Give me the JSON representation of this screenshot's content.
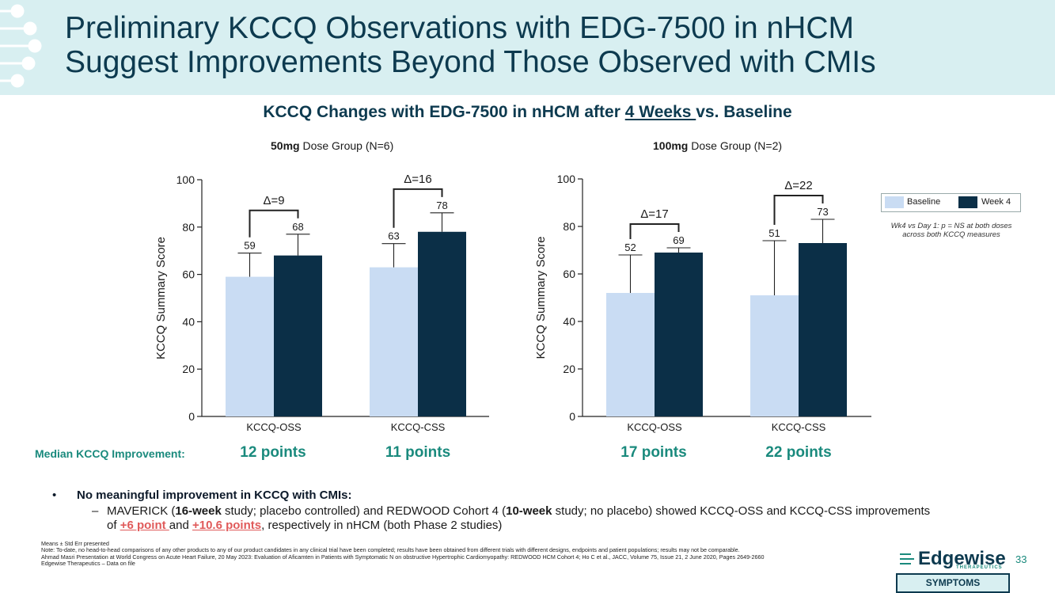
{
  "header": {
    "title_line1": "Preliminary KCCQ Observations with EDG-7500 in nHCM",
    "title_line2": "Suggest Improvements Beyond Those Observed with CMIs"
  },
  "subtitle": {
    "pre": "KCCQ Changes with EDG-7500 in nHCM after ",
    "underlined": "4 Weeks ",
    "post": "vs. Baseline"
  },
  "colors": {
    "baseline": "#c9dcf3",
    "week4": "#0b2f47",
    "accent": "#1a8a7d",
    "header_bg": "#d8eff1"
  },
  "chart_data": [
    {
      "type": "bar",
      "dose_bold": "50mg",
      "dose_rest": " Dose Group (N=6)",
      "ylabel": "KCCQ Summary Score",
      "ylim": [
        0,
        100
      ],
      "yticks": [
        "0",
        "20",
        "40",
        "60",
        "80",
        "100"
      ],
      "categories": [
        "KCCQ-OSS",
        "KCCQ-CSS"
      ],
      "series": [
        {
          "name": "Baseline",
          "values": [
            59,
            63
          ],
          "err": [
            10,
            10
          ],
          "labels": [
            "59",
            "63"
          ]
        },
        {
          "name": "Week 4",
          "values": [
            68,
            78
          ],
          "err": [
            9,
            8
          ],
          "labels": [
            "68",
            "78"
          ]
        }
      ],
      "deltas": [
        "Δ=9",
        "Δ=16"
      ]
    },
    {
      "type": "bar",
      "dose_bold": "100mg",
      "dose_rest": " Dose Group (N=2)",
      "ylabel": "KCCQ Summary Score",
      "ylim": [
        0,
        100
      ],
      "yticks": [
        "0",
        "20",
        "40",
        "60",
        "80",
        "100"
      ],
      "categories": [
        "KCCQ-OSS",
        "KCCQ-CSS"
      ],
      "series": [
        {
          "name": "Baseline",
          "values": [
            52,
            51
          ],
          "err": [
            16,
            23
          ],
          "labels": [
            "52",
            "51"
          ]
        },
        {
          "name": "Week 4",
          "values": [
            69,
            73
          ],
          "err": [
            2,
            10
          ],
          "labels": [
            "69",
            "73"
          ]
        }
      ],
      "deltas": [
        "Δ=17",
        "Δ=22"
      ]
    }
  ],
  "legend": {
    "baseline": "Baseline",
    "week4": "Week 4",
    "note": "Wk4 vs Day 1: p = NS at both doses across both KCCQ measures"
  },
  "median": {
    "label": "Median KCCQ Improvement:",
    "values": [
      "12 points",
      "11 points",
      "17 points",
      "22 points"
    ]
  },
  "bullets": {
    "dot": "•",
    "main": "No meaningful improvement in KCCQ with CMIs:",
    "dash": "–",
    "sub_a": "MAVERICK (",
    "sub_b": "16-week",
    "sub_c": " study; placebo controlled) and REDWOOD Cohort 4 (",
    "sub_d": "10-week",
    "sub_e": " study; no placebo) showed KCCQ-OSS and KCCQ-CSS improvements of ",
    "sub_f": "+6 point ",
    "sub_g": "and ",
    "sub_h": "+10.6 points",
    "sub_i": ", respectively in nHCM (both Phase 2 studies)"
  },
  "footnotes": [
    "Means ± Std Err presented",
    "Note: To-date, no head-to-head comparisons of any other products to any of our product candidates in any clinical trial have been completed; results have been obtained from different trials with different designs, endpoints and patient populations; results may not be comparable.",
    "Ahmad Masri Presentation at World Congress on Acute Heart Failure, 20 May 2023: Evaluation of Aficamten in Patients with Symptomatic N on obstructive Hypertrophic Cardiomyopathy: REDWOOD HCM Cohort 4; Ho C et al., JACC, Volume 75, Issue 21, 2 June 2020, Pages 2649-2660",
    "Edgewise Therapeutics – Data on file"
  ],
  "logo": {
    "name": "Edgewise",
    "sub": "THERAPEUTICS"
  },
  "page_number": "33",
  "badge": "SYMPTOMS"
}
